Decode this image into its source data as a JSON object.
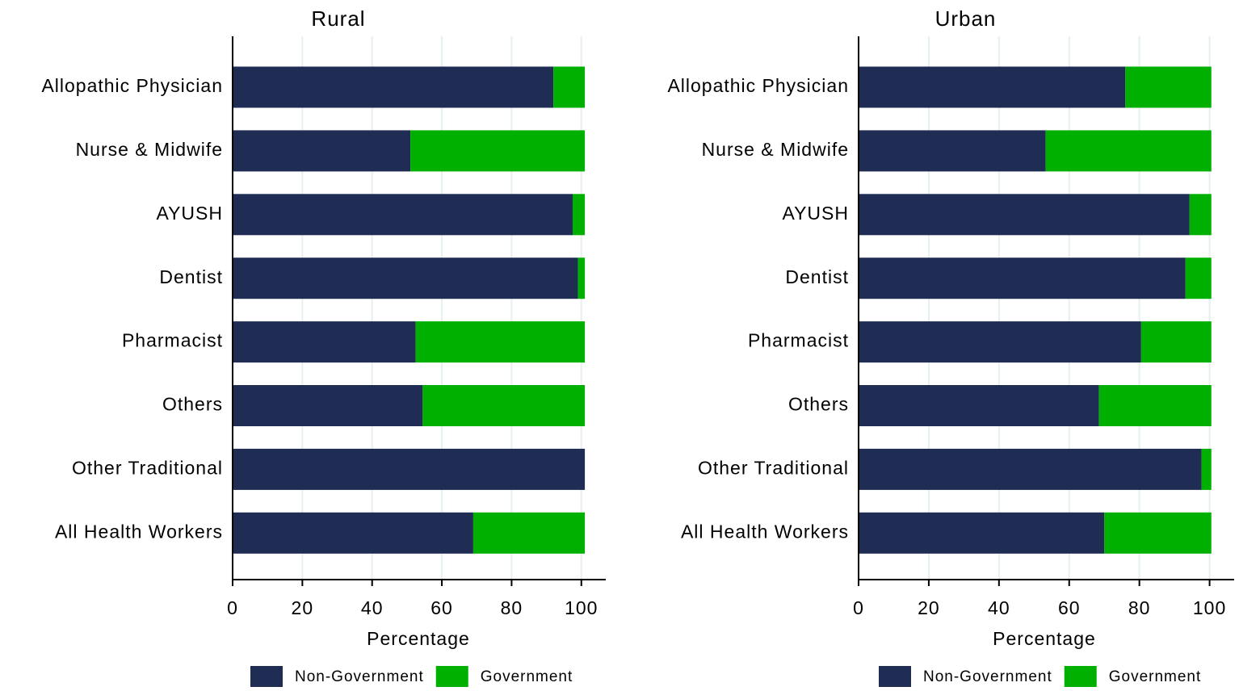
{
  "chart_data": [
    {
      "type": "bar",
      "title": "Rural",
      "x_label": "Percentage",
      "grid": true,
      "categories": [
        "Allopathic Physician",
        "Nurse & Midwife",
        "AYUSH",
        "Dentist",
        "Pharmacist",
        "Others",
        "Other Traditional",
        "All Health Workers"
      ],
      "series": [
        {
          "name": "Non-Government",
          "color": "#1f2d54",
          "values": [
            92,
            51,
            97.5,
            99,
            52.5,
            54.5,
            101,
            69
          ]
        },
        {
          "name": "Government",
          "color": "#00b000",
          "values": [
            9,
            50,
            3.5,
            2,
            48.5,
            46.5,
            0,
            32
          ]
        }
      ],
      "xlim": [
        0,
        107
      ],
      "xticks": [
        0,
        20,
        40,
        60,
        80,
        100
      ]
    },
    {
      "type": "bar",
      "title": "Urban",
      "x_label": "Percentage",
      "grid": true,
      "categories": [
        "Allopathic Physician",
        "Nurse & Midwife",
        "AYUSH",
        "Dentist",
        "Pharmacist",
        "Others",
        "Other Traditional",
        "All Health Workers"
      ],
      "series": [
        {
          "name": "Non-Government",
          "color": "#1f2d54",
          "values": [
            76,
            53.3,
            94.3,
            93.1,
            80.5,
            68.5,
            97.7,
            70
          ]
        },
        {
          "name": "Government",
          "color": "#00b000",
          "values": [
            24.5,
            47.2,
            6.2,
            7.4,
            20,
            32,
            2.8,
            30.5
          ]
        }
      ],
      "xlim": [
        0,
        107
      ],
      "xticks": [
        0,
        20,
        40,
        60,
        80,
        100
      ]
    }
  ]
}
